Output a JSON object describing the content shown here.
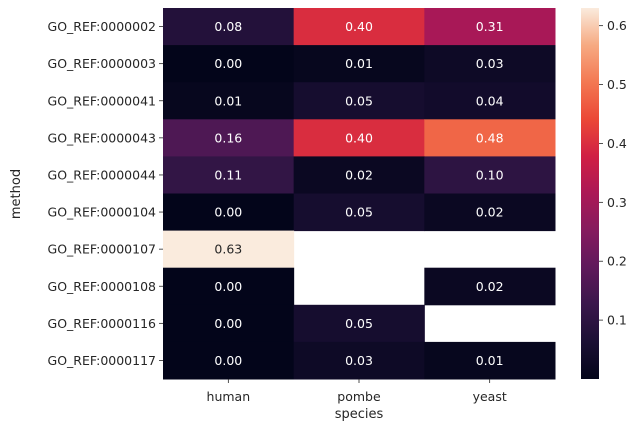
{
  "chart_data": {
    "type": "heatmap",
    "xlabel": "species",
    "ylabel": "method",
    "columns": [
      "human",
      "pombe",
      "yeast"
    ],
    "rows": [
      "GO_REF:0000002",
      "GO_REF:0000003",
      "GO_REF:0000041",
      "GO_REF:0000043",
      "GO_REF:0000044",
      "GO_REF:0000104",
      "GO_REF:0000107",
      "GO_REF:0000108",
      "GO_REF:0000116",
      "GO_REF:0000117"
    ],
    "values": [
      [
        0.08,
        0.4,
        0.31
      ],
      [
        0.0,
        0.01,
        0.03
      ],
      [
        0.01,
        0.05,
        0.04
      ],
      [
        0.16,
        0.4,
        0.48
      ],
      [
        0.11,
        0.02,
        0.1
      ],
      [
        0.0,
        0.05,
        0.02
      ],
      [
        0.63,
        null,
        null
      ],
      [
        0.0,
        null,
        0.02
      ],
      [
        0.0,
        0.05,
        null
      ],
      [
        0.0,
        0.03,
        0.01
      ]
    ],
    "labels": [
      [
        "0.08",
        "0.40",
        "0.31"
      ],
      [
        "0.00",
        "0.01",
        "0.03"
      ],
      [
        "0.01",
        "0.05",
        "0.04"
      ],
      [
        "0.16",
        "0.40",
        "0.48"
      ],
      [
        "0.11",
        "0.02",
        "0.10"
      ],
      [
        "0.00",
        "0.05",
        "0.02"
      ],
      [
        "0.63",
        "",
        ""
      ],
      [
        "0.00",
        "",
        "0.02"
      ],
      [
        "0.00",
        "0.05",
        ""
      ],
      [
        "0.00",
        "0.03",
        "0.01"
      ]
    ],
    "colorbar": {
      "colormap": "rocket",
      "range": [
        0.0,
        0.63
      ],
      "ticks": [
        0.1,
        0.2,
        0.3,
        0.4,
        0.5,
        0.6
      ],
      "tick_labels": [
        "0.1",
        "0.2",
        "0.3",
        "0.4",
        "0.5",
        "0.6"
      ]
    }
  }
}
